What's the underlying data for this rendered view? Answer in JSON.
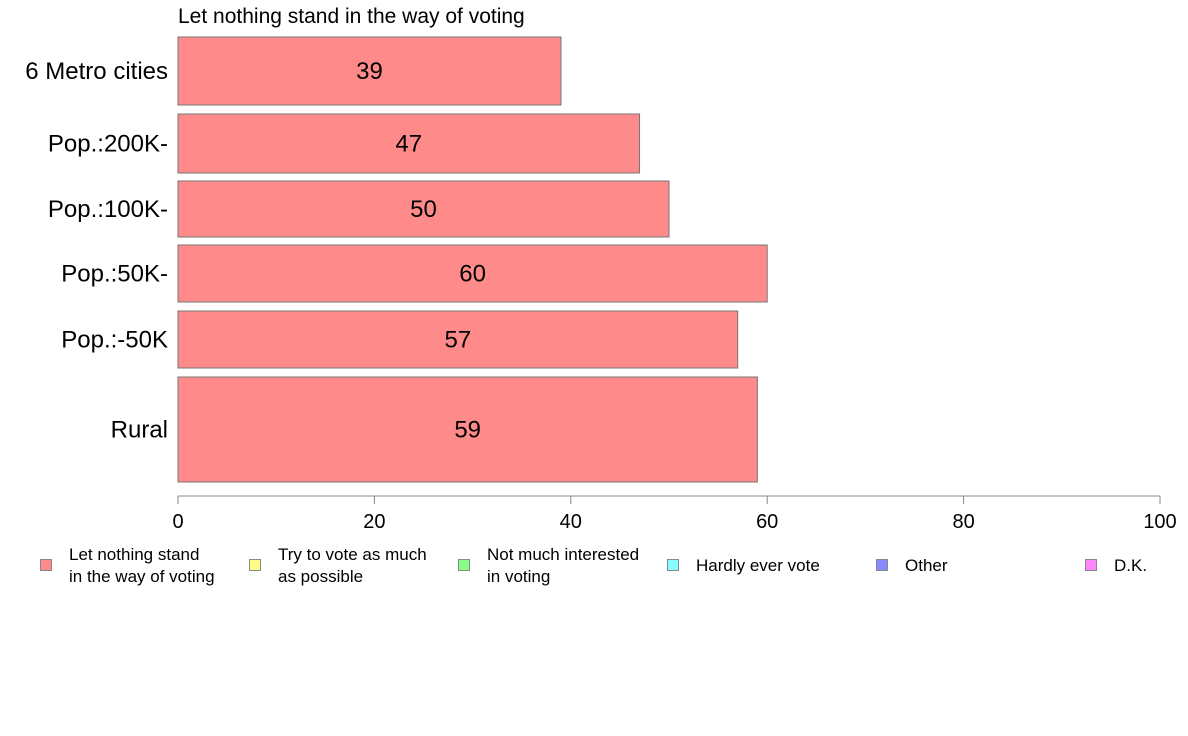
{
  "chart_data": {
    "type": "bar",
    "orientation": "horizontal",
    "title": "Let nothing stand in the way of voting",
    "categories": [
      "6 Metro cities",
      "Pop.:200K-",
      "Pop.:100K-",
      "Pop.:50K-",
      "Pop.:-50K",
      "Rural"
    ],
    "values": [
      39,
      47,
      50,
      60,
      57,
      59
    ],
    "data_labels": [
      "39",
      "47",
      "50",
      "60",
      "57",
      "59"
    ],
    "xlim": [
      0,
      100
    ],
    "xticks": [
      0,
      20,
      40,
      60,
      80,
      100
    ],
    "xtick_labels": [
      "0",
      "20",
      "40",
      "60",
      "80",
      "100"
    ],
    "xlabel": "",
    "ylabel": "",
    "grid": false,
    "bar_color": "#ff8a8a",
    "legend_placement": "bottom",
    "legend": [
      {
        "label": "Let nothing stand\nin the way of voting",
        "color": "#ff8a8a"
      },
      {
        "label": "Try to vote as much\nas possible",
        "color": "#ffff88"
      },
      {
        "label": "Not much interested\nin voting",
        "color": "#88ff88"
      },
      {
        "label": "Hardly ever vote",
        "color": "#88ffff"
      },
      {
        "label": "Other",
        "color": "#8888ff"
      },
      {
        "label": "D.K.",
        "color": "#ff88ff"
      }
    ]
  }
}
